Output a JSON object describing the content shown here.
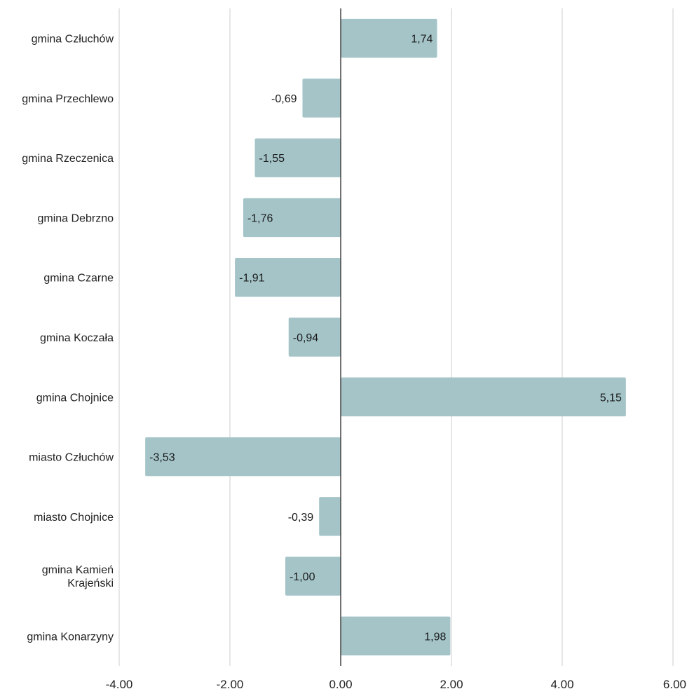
{
  "chart_data": {
    "type": "bar",
    "orientation": "horizontal",
    "categories": [
      "gmina Człuchów",
      "gmina Przechlewo",
      "gmina Rzeczenica",
      "gmina Debrzno",
      "gmina Czarne",
      "gmina Koczała",
      "gmina Chojnice",
      "miasto Człuchów",
      "miasto Chojnice",
      "gmina Kamień Krajeński",
      "gmina Konarzyny"
    ],
    "values": [
      1.74,
      -0.69,
      -1.55,
      -1.76,
      -1.91,
      -0.94,
      5.15,
      -3.53,
      -0.39,
      -1.0,
      1.98
    ],
    "value_labels": [
      "1,74",
      "-0,69",
      "-1,55",
      "-1,76",
      "-1,91",
      "-0,94",
      "5,15",
      "-3,53",
      "-0,39",
      "-1,00",
      "1,98"
    ],
    "xlim": [
      -4,
      6
    ],
    "x_ticks": [
      -4,
      -2,
      0,
      2,
      4,
      6
    ],
    "x_tick_labels": [
      "-4.00",
      "-2.00",
      "0.00",
      "2.00",
      "4.00",
      "6.00"
    ],
    "grid": "vertical",
    "colors": {
      "bar": "#a4c4c8",
      "outside_label": "#a4c4c8",
      "gridline": "#cccccc",
      "zero_line": "#444444"
    },
    "title": "",
    "xlabel": "",
    "ylabel": ""
  }
}
